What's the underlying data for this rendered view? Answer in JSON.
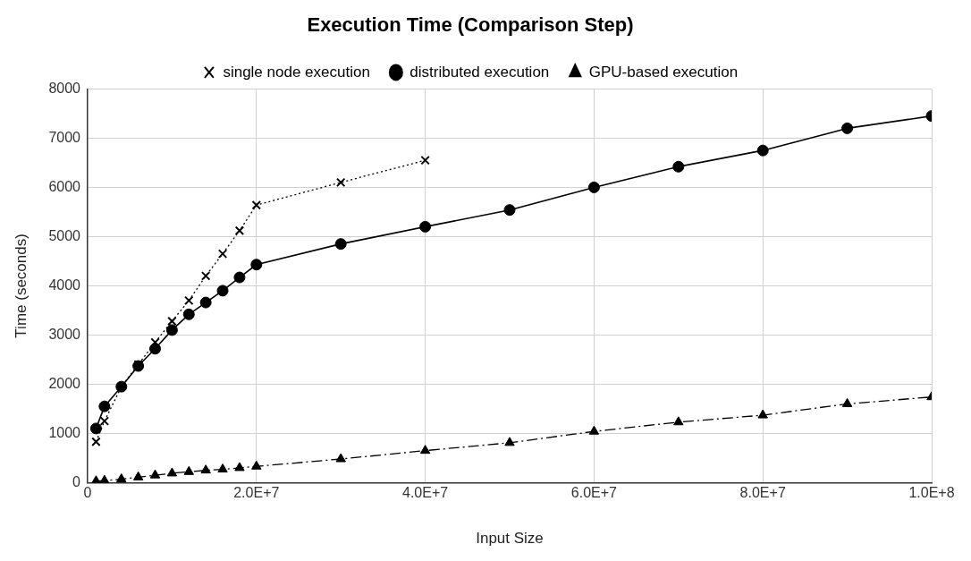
{
  "chart_data": {
    "type": "line",
    "title": "Execution Time (Comparison Step)",
    "xlabel": "Input Size",
    "ylabel": "Time (seconds)",
    "xlim": [
      0,
      100000000
    ],
    "xticks": [
      0,
      {
        "value": 20000000,
        "label": "2.0E+7"
      },
      {
        "value": 40000000,
        "label": "4.0E+7"
      },
      {
        "value": 60000000,
        "label": "6.0E+7"
      },
      {
        "value": 80000000,
        "label": "8.0E+7"
      },
      {
        "value": 100000000,
        "label": "1.0E+8"
      }
    ],
    "ylim": [
      0,
      8000
    ],
    "yticks": [
      0,
      1000,
      2000,
      3000,
      4000,
      5000,
      6000,
      7000,
      8000
    ],
    "grid": true,
    "legend": "top",
    "series": [
      {
        "name": "single node execution",
        "color": "#000000",
        "marker": "cross",
        "line_style": "dotted",
        "x": [
          1000000,
          2000000,
          4000000,
          6000000,
          8000000,
          10000000,
          12000000,
          14000000,
          16000000,
          18000000,
          20000000,
          30000000,
          40000000
        ],
        "values": [
          830,
          1250,
          1950,
          2400,
          2850,
          3280,
          3700,
          4200,
          4650,
          5120,
          5640,
          6100,
          6550
        ]
      },
      {
        "name": "distributed execution",
        "color": "#000000",
        "marker": "circle",
        "line_style": "solid",
        "x": [
          1000000,
          2000000,
          4000000,
          6000000,
          8000000,
          10000000,
          12000000,
          14000000,
          16000000,
          18000000,
          20000000,
          30000000,
          40000000,
          50000000,
          60000000,
          70000000,
          80000000,
          90000000,
          100000000
        ],
        "values": [
          1100,
          1550,
          1950,
          2370,
          2720,
          3100,
          3420,
          3660,
          3900,
          4170,
          4430,
          4850,
          5200,
          5540,
          6000,
          6420,
          6750,
          7200,
          7450
        ]
      },
      {
        "name": "GPU-based execution",
        "color": "#000000",
        "marker": "triangle",
        "line_style": "dashed",
        "x": [
          1000000,
          2000000,
          4000000,
          6000000,
          8000000,
          10000000,
          12000000,
          14000000,
          16000000,
          18000000,
          20000000,
          30000000,
          40000000,
          50000000,
          60000000,
          70000000,
          80000000,
          90000000,
          100000000
        ],
        "values": [
          30,
          40,
          70,
          110,
          150,
          190,
          220,
          250,
          270,
          300,
          330,
          480,
          650,
          810,
          1040,
          1230,
          1370,
          1600,
          1740
        ]
      }
    ]
  }
}
